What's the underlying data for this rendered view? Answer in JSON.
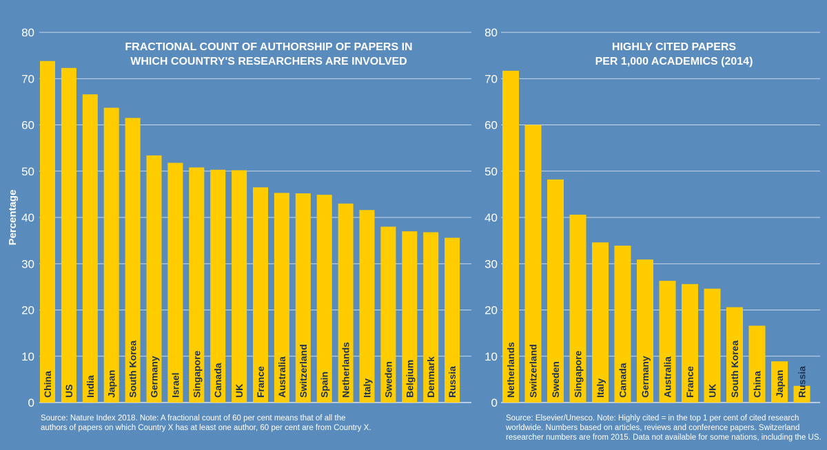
{
  "colors": {
    "background": "#5a8bbd",
    "bar": "#ffcc00",
    "bar_label": "#1f3350",
    "grid": "#ffffff"
  },
  "chart_data": [
    {
      "type": "bar",
      "title": [
        "FRACTIONAL COUNT OF AUTHORSHIP OF PAPERS IN",
        "WHICH COUNTRY'S RESEARCHERS ARE INVOLVED"
      ],
      "ylabel": "Percentage",
      "ylim": [
        0,
        80
      ],
      "yticks": [
        "0",
        "10",
        "20",
        "30",
        "40",
        "50",
        "60",
        "70",
        "80"
      ],
      "grid": true,
      "categories": [
        "China",
        "US",
        "India",
        "Japan",
        "South Korea",
        "Germany",
        "Israel",
        "Singapore",
        "Canada",
        "UK",
        "France",
        "Australia",
        "Switzerland",
        "Spain",
        "Netherlands",
        "Italy",
        "Sweden",
        "Belgium",
        "Denmark",
        "Russia"
      ],
      "values": [
        73.8,
        72.3,
        66.6,
        63.7,
        61.5,
        53.4,
        51.8,
        50.8,
        50.3,
        50.2,
        46.5,
        45.3,
        45.2,
        44.9,
        43.0,
        41.6,
        38.0,
        37.0,
        36.8,
        35.6
      ],
      "source": [
        "Source: Nature Index 2018. Note: A fractional count of 60 per cent means that of all the",
        "authors of papers on which Country X has at least one author, 60 per cent are from Country X."
      ]
    },
    {
      "type": "bar",
      "title": [
        "HIGHLY CITED PAPERS",
        "PER 1,000 ACADEMICS (2014)"
      ],
      "ylabel": "",
      "ylim": [
        0,
        80
      ],
      "yticks": [
        "0",
        "10",
        "20",
        "30",
        "40",
        "50",
        "60",
        "70",
        "80"
      ],
      "grid": true,
      "categories": [
        "Netherlands",
        "Switzerland",
        "Sweden",
        "Singapore",
        "Italy",
        "Canada",
        "Germany",
        "Australia",
        "France",
        "UK",
        "South Korea",
        "China",
        "Japan",
        "Russia"
      ],
      "values": [
        71.7,
        60.0,
        48.2,
        40.6,
        34.6,
        33.9,
        30.9,
        26.3,
        25.6,
        24.6,
        20.6,
        16.6,
        8.9,
        3.6
      ],
      "source": [
        "Source: Elsevier/Unesco. Note: Highly cited = in the top 1 per cent of cited research",
        "worldwide. Numbers based on articles, reviews and conference papers. Switzerland",
        "researcher numbers are from 2015. Data not available for some nations, including the US."
      ]
    }
  ]
}
